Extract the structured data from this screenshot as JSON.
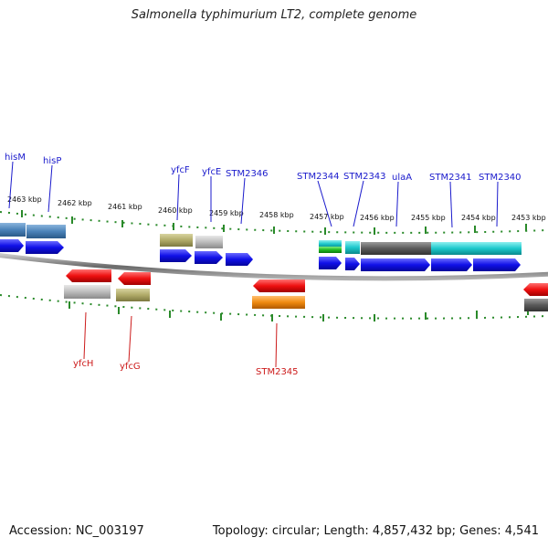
{
  "title": "Salmonella typhimurium LT2, complete genome",
  "footer": {
    "accession": "Accession: NC_003197",
    "summary": "Topology: circular; Length: 4,857,432 bp; Genes: 4,541"
  },
  "colors": {
    "backbone": "#8a8a8a",
    "tick": "#2a8a2a",
    "forward_label": "#1a1acc",
    "reverse_label": "#cc1a1a",
    "cds_blue": "#1010e8",
    "cds_red": "#ee1010"
  },
  "kbp_ticks": [
    "2463 kbp",
    "2462 kbp",
    "2461 kbp",
    "2460 kbp",
    "2459 kbp",
    "2458 kbp",
    "2457 kbp",
    "2456 kbp",
    "2455 kbp",
    "2454 kbp",
    "2453 kbp"
  ],
  "forward_genes": [
    "hisM",
    "hisP",
    "yfcF",
    "yfcE",
    "STM2346",
    "STM2344",
    "STM2343",
    "ulaA",
    "STM2341",
    "STM2340"
  ],
  "reverse_genes": [
    "yfcH",
    "yfcG",
    "STM2345"
  ]
}
